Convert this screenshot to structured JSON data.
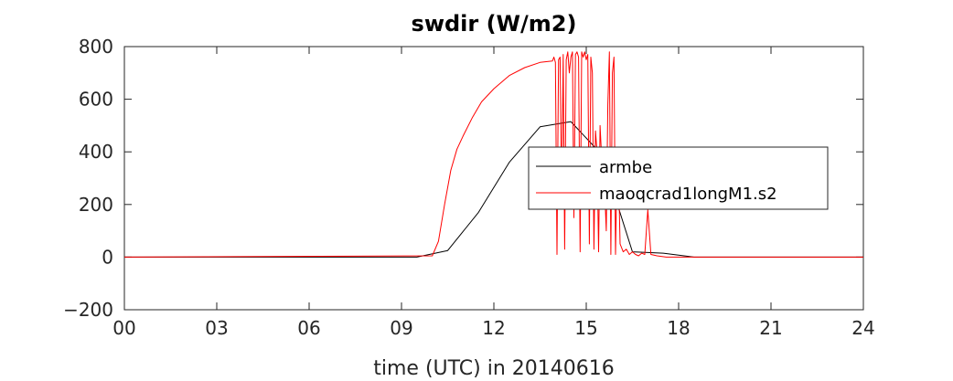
{
  "chart_data": {
    "type": "line",
    "title": "swdir  (W/m2)",
    "xlabel": "time (UTC) in 20140616",
    "ylabel": "",
    "xlim": [
      0,
      24
    ],
    "ylim": [
      -200,
      800
    ],
    "x_ticks": [
      0,
      3,
      6,
      9,
      12,
      15,
      18,
      21,
      24
    ],
    "x_tick_labels": [
      "00",
      "03",
      "06",
      "09",
      "12",
      "15",
      "18",
      "21",
      "24"
    ],
    "y_ticks": [
      -200,
      0,
      200,
      400,
      600,
      800
    ],
    "y_tick_labels": [
      "-200",
      "0",
      "200",
      "400",
      "600",
      "800"
    ],
    "legend_position": "center-right",
    "series": [
      {
        "name": "armbe",
        "color": "#000000",
        "x": [
          0,
          9.5,
          10.5,
          11.5,
          12.5,
          13.5,
          14.5,
          15.5,
          16.5,
          17.5,
          18.5,
          24
        ],
        "y": [
          0,
          0,
          25,
          170,
          360,
          495,
          515,
          390,
          20,
          15,
          0,
          0
        ]
      },
      {
        "name": "maoqcrad1longM1.s2",
        "color": "#ff0000",
        "x": [
          0,
          10.0,
          10.2,
          10.4,
          10.6,
          10.8,
          11.0,
          11.3,
          11.6,
          12.0,
          12.5,
          13.0,
          13.5,
          13.9,
          13.95,
          14.0,
          14.05,
          14.1,
          14.15,
          14.2,
          14.25,
          14.3,
          14.35,
          14.4,
          14.45,
          14.5,
          14.55,
          14.6,
          14.65,
          14.7,
          14.75,
          14.8,
          14.85,
          14.9,
          14.95,
          15.0,
          15.05,
          15.1,
          15.15,
          15.2,
          15.25,
          15.3,
          15.35,
          15.4,
          15.45,
          15.5,
          15.55,
          15.6,
          15.65,
          15.7,
          15.75,
          15.8,
          15.85,
          15.9,
          15.95,
          16.0,
          16.05,
          16.1,
          16.2,
          16.3,
          16.4,
          16.5,
          16.6,
          16.7,
          16.8,
          16.9,
          17.0,
          17.1,
          17.3,
          17.6,
          18.0,
          24
        ],
        "y": [
          0,
          5,
          60,
          200,
          330,
          410,
          460,
          530,
          590,
          640,
          690,
          720,
          740,
          745,
          760,
          740,
          10,
          750,
          760,
          200,
          770,
          30,
          750,
          780,
          700,
          760,
          780,
          150,
          770,
          780,
          760,
          20,
          780,
          760,
          780,
          750,
          770,
          50,
          760,
          700,
          30,
          480,
          400,
          20,
          500,
          380,
          400,
          250,
          100,
          580,
          780,
          10,
          700,
          760,
          10,
          350,
          300,
          50,
          20,
          30,
          10,
          20,
          10,
          5,
          15,
          10,
          180,
          10,
          5,
          0,
          0,
          0
        ]
      }
    ]
  }
}
